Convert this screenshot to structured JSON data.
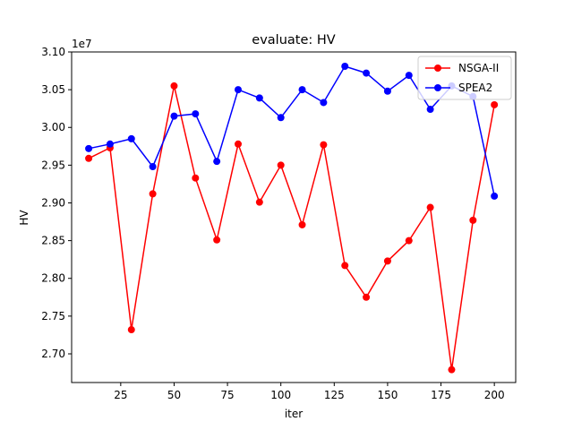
{
  "chart_data": {
    "type": "line",
    "title": "evaluate: HV",
    "xlabel": "iter",
    "ylabel": "HV",
    "y_offset_label": "1e7",
    "xlim": [
      2,
      210
    ],
    "ylim": [
      2.662,
      3.1
    ],
    "x_ticks": [
      25,
      50,
      75,
      100,
      125,
      150,
      175,
      200
    ],
    "x_tick_labels": [
      "25",
      "50",
      "75",
      "100",
      "125",
      "150",
      "175",
      "200"
    ],
    "y_ticks": [
      2.7,
      2.75,
      2.8,
      2.85,
      2.9,
      2.95,
      3.0,
      3.05,
      3.1
    ],
    "y_tick_labels": [
      "2.70",
      "2.75",
      "2.80",
      "2.85",
      "2.90",
      "2.95",
      "3.00",
      "3.05",
      "3.10"
    ],
    "grid": false,
    "legend_position": "top-right",
    "x": [
      10,
      20,
      30,
      40,
      50,
      60,
      70,
      80,
      90,
      100,
      110,
      120,
      130,
      140,
      150,
      160,
      170,
      180,
      190,
      200
    ],
    "series": [
      {
        "name": "NSGA-II",
        "color": "#ff0000",
        "values": [
          2.959,
          2.973,
          2.732,
          2.912,
          3.055,
          2.933,
          2.851,
          2.978,
          2.901,
          2.95,
          2.871,
          2.977,
          2.817,
          2.775,
          2.823,
          2.85,
          2.894,
          2.679,
          2.877,
          3.03
        ]
      },
      {
        "name": "SPEA2",
        "color": "#0000ff",
        "values": [
          2.972,
          2.978,
          2.985,
          2.948,
          3.015,
          3.018,
          2.955,
          3.05,
          3.039,
          3.013,
          3.05,
          3.033,
          3.081,
          3.072,
          3.048,
          3.069,
          3.024,
          3.055,
          3.041,
          2.909
        ]
      }
    ]
  }
}
